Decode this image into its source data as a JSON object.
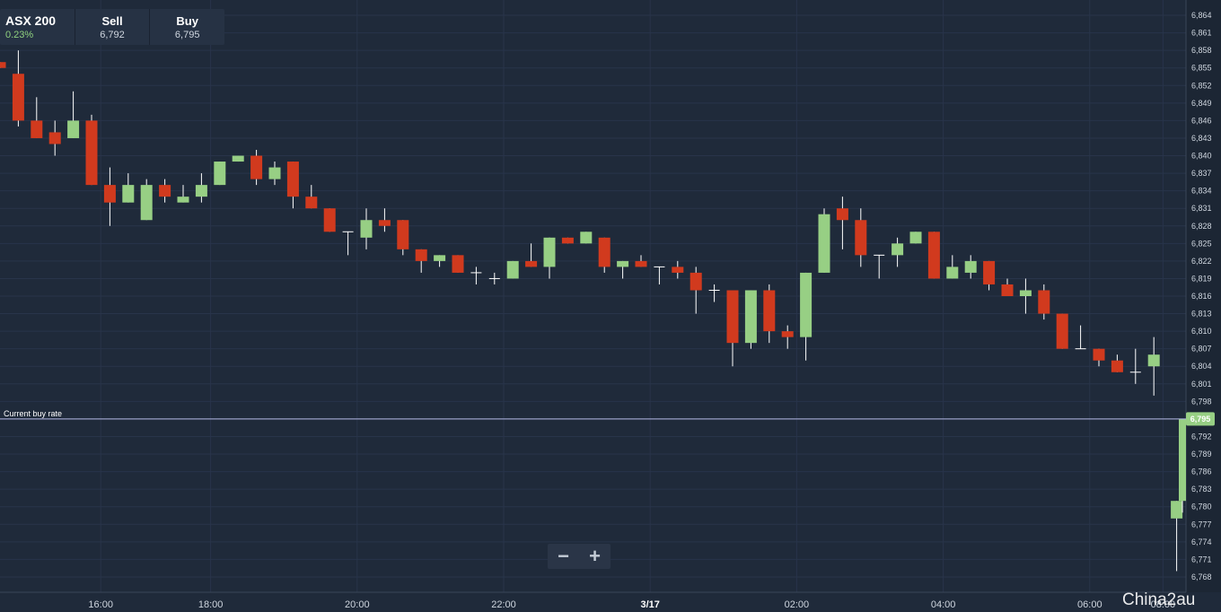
{
  "header": {
    "instrument": "ASX 200",
    "change": "0.23%",
    "sell_label": "Sell",
    "sell_value": "6,792",
    "buy_label": "Buy",
    "buy_value": "6,795"
  },
  "current_rate": {
    "label": "Current buy rate",
    "value": 6795,
    "value_text": "6,795"
  },
  "zoom": {
    "minus": "−",
    "plus": "+"
  },
  "watermark": "Chinа2au",
  "colors": {
    "up": "#97cf84",
    "down": "#d13a1e",
    "background": "#1f2a3a",
    "grid": "#28344a",
    "current_line": "#b5b8e6"
  },
  "chart_data": {
    "type": "candlestick",
    "ylim": [
      6766,
      6866
    ],
    "y_ticks": [
      "6,864",
      "6,861",
      "6,858",
      "6,855",
      "6,852",
      "6,849",
      "6,846",
      "6,843",
      "6,840",
      "6,837",
      "6,834",
      "6,831",
      "6,828",
      "6,825",
      "6,822",
      "6,819",
      "6,816",
      "6,813",
      "6,810",
      "6,807",
      "6,804",
      "6,801",
      "6,798",
      "6,795",
      "6,792",
      "6,789",
      "6,786",
      "6,783",
      "6,780",
      "6,777",
      "6,774",
      "6,771",
      "6,768"
    ],
    "y_tick_values": [
      6864,
      6861,
      6858,
      6855,
      6852,
      6849,
      6846,
      6843,
      6840,
      6837,
      6834,
      6831,
      6828,
      6825,
      6822,
      6819,
      6816,
      6813,
      6810,
      6807,
      6804,
      6801,
      6798,
      6795,
      6792,
      6789,
      6786,
      6783,
      6780,
      6777,
      6774,
      6771,
      6768
    ],
    "x_tick_labels": [
      "16:00",
      "18:00",
      "20:00",
      "22:00",
      "3/17",
      "02:00",
      "04:00",
      "06:00",
      "08:00"
    ],
    "x_tick_index": [
      5.5,
      11.5,
      19.5,
      27.5,
      35.5,
      43.5,
      51.5,
      59.5,
      63.5
    ],
    "candles": [
      {
        "o": 6856,
        "h": 6856,
        "l": 6855,
        "c": 6855
      },
      {
        "o": 6854,
        "h": 6858,
        "l": 6845,
        "c": 6846
      },
      {
        "o": 6846,
        "h": 6850,
        "l": 6843,
        "c": 6843
      },
      {
        "o": 6844,
        "h": 6846,
        "l": 6840,
        "c": 6842
      },
      {
        "o": 6843,
        "h": 6851,
        "l": 6843,
        "c": 6846
      },
      {
        "o": 6846,
        "h": 6847,
        "l": 6835,
        "c": 6835
      },
      {
        "o": 6835,
        "h": 6838,
        "l": 6828,
        "c": 6832
      },
      {
        "o": 6832,
        "h": 6837,
        "l": 6832,
        "c": 6835
      },
      {
        "o": 6829,
        "h": 6836,
        "l": 6829,
        "c": 6835
      },
      {
        "o": 6835,
        "h": 6836,
        "l": 6832,
        "c": 6833
      },
      {
        "o": 6832,
        "h": 6835,
        "l": 6832,
        "c": 6833
      },
      {
        "o": 6833,
        "h": 6837,
        "l": 6832,
        "c": 6835
      },
      {
        "o": 6835,
        "h": 6839,
        "l": 6835,
        "c": 6839
      },
      {
        "o": 6839,
        "h": 6840,
        "l": 6839,
        "c": 6840
      },
      {
        "o": 6840,
        "h": 6841,
        "l": 6835,
        "c": 6836
      },
      {
        "o": 6836,
        "h": 6839,
        "l": 6835,
        "c": 6838
      },
      {
        "o": 6839,
        "h": 6839,
        "l": 6831,
        "c": 6833
      },
      {
        "o": 6833,
        "h": 6835,
        "l": 6831,
        "c": 6831
      },
      {
        "o": 6831,
        "h": 6831,
        "l": 6827,
        "c": 6827
      },
      {
        "o": 6827,
        "h": 6827,
        "l": 6823,
        "c": 6827
      },
      {
        "o": 6826,
        "h": 6831,
        "l": 6824,
        "c": 6829
      },
      {
        "o": 6829,
        "h": 6831,
        "l": 6827,
        "c": 6828
      },
      {
        "o": 6829,
        "h": 6829,
        "l": 6823,
        "c": 6824
      },
      {
        "o": 6824,
        "h": 6824,
        "l": 6820,
        "c": 6822
      },
      {
        "o": 6822,
        "h": 6823,
        "l": 6821,
        "c": 6823
      },
      {
        "o": 6823,
        "h": 6823,
        "l": 6820,
        "c": 6820
      },
      {
        "o": 6820,
        "h": 6821,
        "l": 6818,
        "c": 6820
      },
      {
        "o": 6819,
        "h": 6820,
        "l": 6818,
        "c": 6819
      },
      {
        "o": 6819,
        "h": 6822,
        "l": 6819,
        "c": 6822
      },
      {
        "o": 6822,
        "h": 6825,
        "l": 6821,
        "c": 6821
      },
      {
        "o": 6821,
        "h": 6826,
        "l": 6819,
        "c": 6826
      },
      {
        "o": 6826,
        "h": 6826,
        "l": 6825,
        "c": 6825
      },
      {
        "o": 6825,
        "h": 6827,
        "l": 6825,
        "c": 6827
      },
      {
        "o": 6826,
        "h": 6826,
        "l": 6820,
        "c": 6821
      },
      {
        "o": 6821,
        "h": 6822,
        "l": 6819,
        "c": 6822
      },
      {
        "o": 6822,
        "h": 6823,
        "l": 6821,
        "c": 6821
      },
      {
        "o": 6821,
        "h": 6821,
        "l": 6818,
        "c": 6821
      },
      {
        "o": 6821,
        "h": 6822,
        "l": 6819,
        "c": 6820
      },
      {
        "o": 6820,
        "h": 6821,
        "l": 6813,
        "c": 6817
      },
      {
        "o": 6817,
        "h": 6818,
        "l": 6815,
        "c": 6817
      },
      {
        "o": 6817,
        "h": 6817,
        "l": 6804,
        "c": 6808
      },
      {
        "o": 6808,
        "h": 6817,
        "l": 6807,
        "c": 6817
      },
      {
        "o": 6817,
        "h": 6818,
        "l": 6808,
        "c": 6810
      },
      {
        "o": 6810,
        "h": 6811,
        "l": 6807,
        "c": 6809
      },
      {
        "o": 6809,
        "h": 6820,
        "l": 6805,
        "c": 6820
      },
      {
        "o": 6820,
        "h": 6831,
        "l": 6820,
        "c": 6830
      },
      {
        "o": 6831,
        "h": 6833,
        "l": 6824,
        "c": 6829
      },
      {
        "o": 6829,
        "h": 6831,
        "l": 6821,
        "c": 6823
      },
      {
        "o": 6823,
        "h": 6823,
        "l": 6819,
        "c": 6823
      },
      {
        "o": 6823,
        "h": 6826,
        "l": 6821,
        "c": 6825
      },
      {
        "o": 6825,
        "h": 6827,
        "l": 6825,
        "c": 6827
      },
      {
        "o": 6827,
        "h": 6827,
        "l": 6819,
        "c": 6819
      },
      {
        "o": 6819,
        "h": 6823,
        "l": 6819,
        "c": 6821
      },
      {
        "o": 6820,
        "h": 6823,
        "l": 6819,
        "c": 6822
      },
      {
        "o": 6822,
        "h": 6822,
        "l": 6817,
        "c": 6818
      },
      {
        "o": 6818,
        "h": 6819,
        "l": 6816,
        "c": 6816
      },
      {
        "o": 6816,
        "h": 6819,
        "l": 6813,
        "c": 6817
      },
      {
        "o": 6817,
        "h": 6818,
        "l": 6812,
        "c": 6813
      },
      {
        "o": 6813,
        "h": 6813,
        "l": 6807,
        "c": 6807
      },
      {
        "o": 6807,
        "h": 6811,
        "l": 6807,
        "c": 6807
      },
      {
        "o": 6807,
        "h": 6807,
        "l": 6804,
        "c": 6805
      },
      {
        "o": 6805,
        "h": 6806,
        "l": 6803,
        "c": 6803
      },
      {
        "o": 6803,
        "h": 6807,
        "l": 6801,
        "c": 6803
      },
      {
        "o": 6804,
        "h": 6809,
        "l": 6799,
        "c": 6806
      },
      {
        "o": 6778,
        "h": 6781,
        "l": 6769,
        "c": 6781
      },
      {
        "o": 6781,
        "h": 6795,
        "l": 6779,
        "c": 6795
      }
    ]
  }
}
